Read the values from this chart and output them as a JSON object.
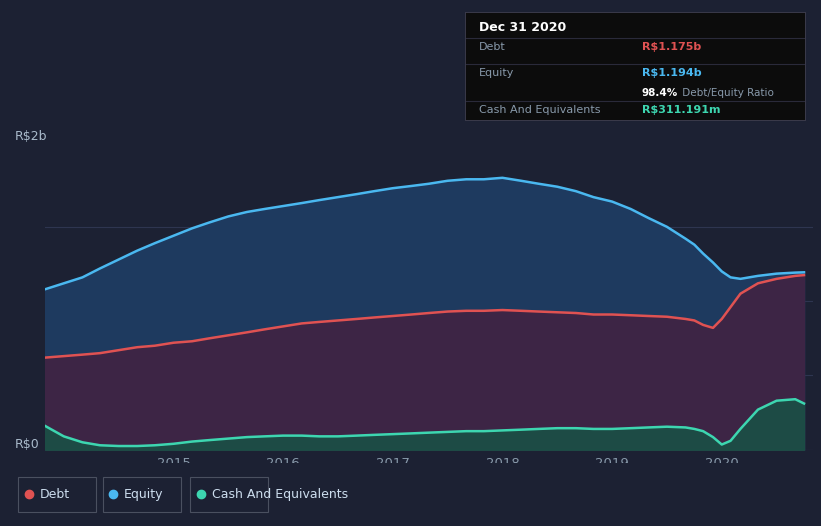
{
  "bg_color": "#1c2133",
  "plot_bg_color": "#1c2133",
  "title_text": "Dec 31 2020",
  "ylabel_top": "R$2b",
  "ylabel_bottom": "R$0",
  "debt_color": "#e05252",
  "equity_color": "#4ab8f0",
  "cash_color": "#3dd6b0",
  "equity_fill_color": "#1e3a5f",
  "debt_fill_color": "#3d2545",
  "cash_fill_color": "#1a5045",
  "debt_label": "Debt",
  "equity_label": "Equity",
  "cash_label": "Cash And Equivalents",
  "debt_value": "R$1.175b",
  "equity_value": "R$1.194b",
  "cash_value": "R$311.191m",
  "debt_data_x": [
    2013.83,
    2014.0,
    2014.17,
    2014.33,
    2014.5,
    2014.67,
    2014.83,
    2015.0,
    2015.17,
    2015.33,
    2015.5,
    2015.67,
    2015.83,
    2016.0,
    2016.17,
    2016.33,
    2016.5,
    2016.67,
    2016.83,
    2017.0,
    2017.17,
    2017.33,
    2017.5,
    2017.67,
    2017.83,
    2018.0,
    2018.17,
    2018.33,
    2018.5,
    2018.67,
    2018.83,
    2019.0,
    2019.17,
    2019.33,
    2019.5,
    2019.67,
    2019.75,
    2019.83,
    2019.92,
    2020.0,
    2020.08,
    2020.17,
    2020.33,
    2020.5,
    2020.67,
    2020.75
  ],
  "debt_data_y": [
    0.62,
    0.63,
    0.64,
    0.65,
    0.67,
    0.69,
    0.7,
    0.72,
    0.73,
    0.75,
    0.77,
    0.79,
    0.81,
    0.83,
    0.85,
    0.86,
    0.87,
    0.88,
    0.89,
    0.9,
    0.91,
    0.92,
    0.93,
    0.935,
    0.935,
    0.94,
    0.935,
    0.93,
    0.925,
    0.92,
    0.91,
    0.91,
    0.905,
    0.9,
    0.895,
    0.88,
    0.87,
    0.84,
    0.82,
    0.88,
    0.96,
    1.05,
    1.12,
    1.15,
    1.17,
    1.175
  ],
  "equity_data_x": [
    2013.83,
    2014.0,
    2014.17,
    2014.33,
    2014.5,
    2014.67,
    2014.83,
    2015.0,
    2015.17,
    2015.33,
    2015.5,
    2015.67,
    2015.83,
    2016.0,
    2016.17,
    2016.33,
    2016.5,
    2016.67,
    2016.83,
    2017.0,
    2017.17,
    2017.33,
    2017.5,
    2017.67,
    2017.83,
    2018.0,
    2018.17,
    2018.33,
    2018.5,
    2018.67,
    2018.83,
    2019.0,
    2019.17,
    2019.33,
    2019.5,
    2019.67,
    2019.75,
    2019.83,
    2019.92,
    2020.0,
    2020.08,
    2020.17,
    2020.33,
    2020.5,
    2020.67,
    2020.75
  ],
  "equity_data_y": [
    1.08,
    1.12,
    1.16,
    1.22,
    1.28,
    1.34,
    1.39,
    1.44,
    1.49,
    1.53,
    1.57,
    1.6,
    1.62,
    1.64,
    1.66,
    1.68,
    1.7,
    1.72,
    1.74,
    1.76,
    1.775,
    1.79,
    1.81,
    1.82,
    1.82,
    1.83,
    1.81,
    1.79,
    1.77,
    1.74,
    1.7,
    1.67,
    1.62,
    1.56,
    1.5,
    1.42,
    1.38,
    1.32,
    1.26,
    1.2,
    1.16,
    1.15,
    1.17,
    1.185,
    1.192,
    1.194
  ],
  "cash_data_x": [
    2013.83,
    2014.0,
    2014.17,
    2014.33,
    2014.5,
    2014.67,
    2014.83,
    2015.0,
    2015.17,
    2015.33,
    2015.5,
    2015.67,
    2015.83,
    2016.0,
    2016.17,
    2016.33,
    2016.5,
    2016.67,
    2016.83,
    2017.0,
    2017.17,
    2017.33,
    2017.5,
    2017.67,
    2017.83,
    2018.0,
    2018.17,
    2018.33,
    2018.5,
    2018.67,
    2018.83,
    2019.0,
    2019.17,
    2019.33,
    2019.5,
    2019.67,
    2019.75,
    2019.83,
    2019.92,
    2020.0,
    2020.08,
    2020.17,
    2020.33,
    2020.5,
    2020.67,
    2020.75
  ],
  "cash_data_y": [
    0.16,
    0.09,
    0.05,
    0.03,
    0.025,
    0.025,
    0.03,
    0.04,
    0.055,
    0.065,
    0.075,
    0.085,
    0.09,
    0.095,
    0.095,
    0.09,
    0.09,
    0.095,
    0.1,
    0.105,
    0.11,
    0.115,
    0.12,
    0.125,
    0.125,
    0.13,
    0.135,
    0.14,
    0.145,
    0.145,
    0.14,
    0.14,
    0.145,
    0.15,
    0.155,
    0.15,
    0.14,
    0.125,
    0.085,
    0.035,
    0.06,
    0.14,
    0.27,
    0.33,
    0.34,
    0.311
  ],
  "ylim": [
    0,
    2.0
  ],
  "xlim": [
    2013.83,
    2020.83
  ],
  "grid_lines": [
    0.5,
    1.0,
    1.5
  ],
  "grid_color": "#2e3550",
  "x_ticks": [
    2015,
    2016,
    2017,
    2018,
    2019,
    2020
  ],
  "tick_color": "#8899aa"
}
